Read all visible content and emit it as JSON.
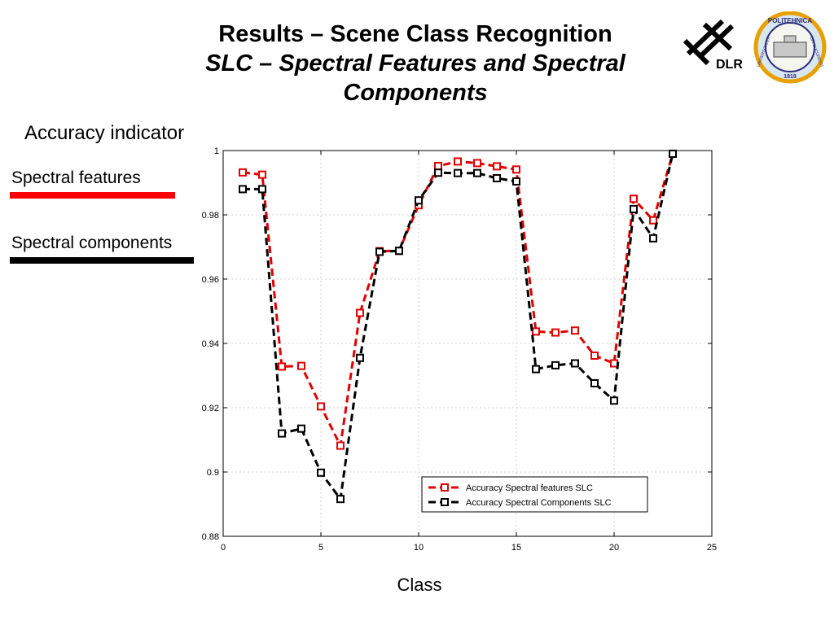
{
  "slide": {
    "title": "Results – Scene Class Recognition",
    "subtitle_line1": "SLC – Spectral Features and Spectral",
    "subtitle_line2": "Components",
    "indicator_label": "Accuracy indicator",
    "side_legend": [
      {
        "label": "Spectral features",
        "color": "#ff0000"
      },
      {
        "label": "Spectral components",
        "color": "#000000"
      }
    ],
    "logos": {
      "dlr_text": "DLR",
      "seal_top_text": "POLITEHNICA",
      "seal_left_text": "UNIVERSITATEA",
      "seal_right_text": "DIN BUCURESTI",
      "seal_year": "1818"
    }
  },
  "chart_data": {
    "type": "line",
    "title": "",
    "xlabel": "Class",
    "ylabel": "",
    "xlim": [
      0,
      25
    ],
    "ylim": [
      0.88,
      1
    ],
    "xticks": [
      0,
      5,
      10,
      15,
      20,
      25
    ],
    "yticks": [
      0.88,
      0.9,
      0.92,
      0.94,
      0.96,
      0.98,
      1
    ],
    "ytick_labels": [
      "0.88",
      "0.9",
      "0.92",
      "0.94",
      "0.96",
      "0.98",
      "1"
    ],
    "grid": true,
    "legend_position": "bottom-right",
    "x": [
      1,
      2,
      3,
      4,
      5,
      6,
      7,
      8,
      9,
      10,
      11,
      12,
      13,
      14,
      15,
      16,
      17,
      18,
      19,
      20,
      21,
      22,
      23
    ],
    "series": [
      {
        "name": "Accuracy Spectral features SLC",
        "color": "#e00000",
        "marker": "square",
        "dash": true,
        "values": [
          0.9932,
          0.9925,
          0.9328,
          0.933,
          0.9204,
          0.9082,
          0.9495,
          0.9687,
          0.9688,
          0.983,
          0.9952,
          0.9966,
          0.9961,
          0.9951,
          0.9941,
          0.9437,
          0.9434,
          0.944,
          0.9362,
          0.9338,
          0.985,
          0.9783,
          0.999
        ]
      },
      {
        "name": "Accuracy Spectral Components SLC",
        "color": "#000000",
        "marker": "square",
        "dash": true,
        "values": [
          0.988,
          0.988,
          0.912,
          0.9135,
          0.8998,
          0.8916,
          0.9355,
          0.9685,
          0.9688,
          0.9845,
          0.9931,
          0.993,
          0.993,
          0.9914,
          0.9904,
          0.932,
          0.9332,
          0.9338,
          0.9276,
          0.9222,
          0.9818,
          0.9727,
          0.999
        ]
      }
    ]
  }
}
